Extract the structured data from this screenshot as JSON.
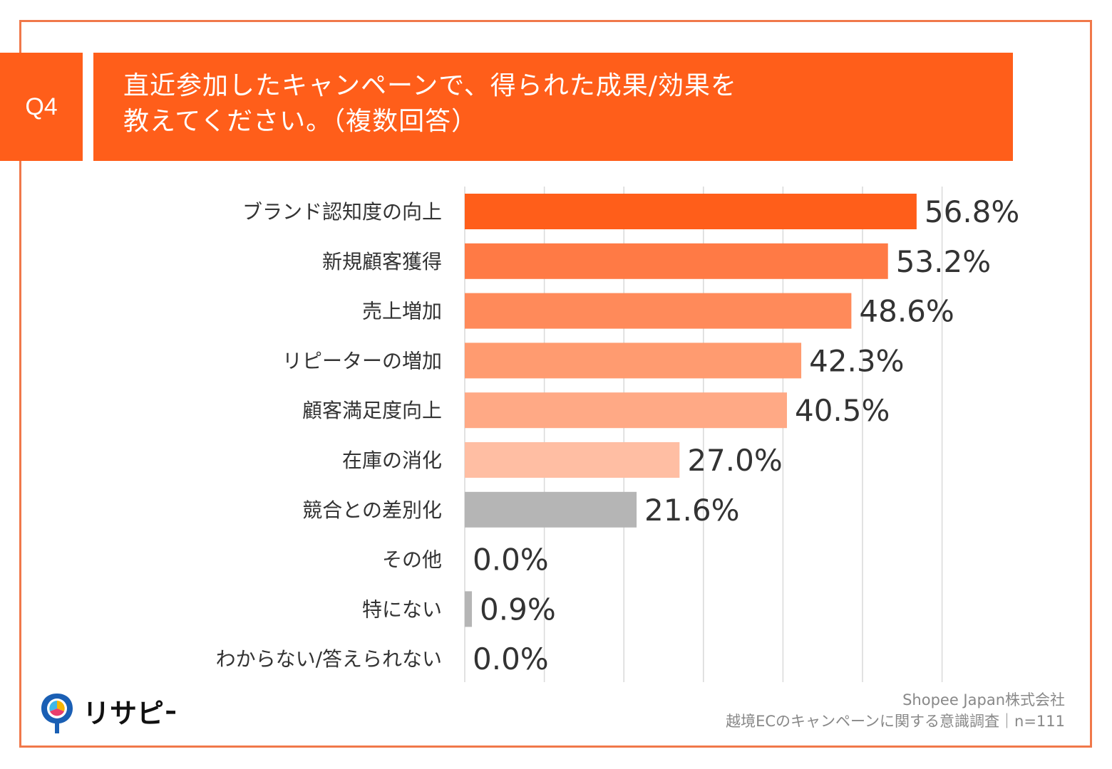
{
  "header": {
    "q_label": "Q4",
    "title_line1": "直近参加したキャンペーンで、得られた成果/効果を",
    "title_line2": "教えてください。（複数回答）"
  },
  "colors": {
    "accent": "#ff5e1a",
    "frame": "#f0784a",
    "grid": "#d9d9d9",
    "gray_bar": "#b5b5b5"
  },
  "chart_data": {
    "type": "bar",
    "orientation": "horizontal",
    "title": "直近参加したキャンペーンで、得られた成果/効果を教えてください。（複数回答）",
    "unit": "%",
    "xlim": [
      0,
      60
    ],
    "categories": [
      "ブランド認知度の向上",
      "新規顧客獲得",
      "売上増加",
      "リピーターの増加",
      "顧客満足度向上",
      "在庫の消化",
      "競合との差別化",
      "その他",
      "特にない",
      "わからない/答えられない"
    ],
    "values": [
      56.8,
      53.2,
      48.6,
      42.3,
      40.5,
      27.0,
      21.6,
      0.0,
      0.9,
      0.0
    ],
    "labels": [
      "56.8%",
      "53.2%",
      "48.6%",
      "42.3%",
      "40.5%",
      "27.0%",
      "21.6%",
      "0.0%",
      "0.9%",
      "0.0%"
    ],
    "bar_colors": [
      "#ff5e1a",
      "#ff7a45",
      "#ff8a5a",
      "#ff9b70",
      "#ffa985",
      "#ffbea3",
      "#b5b5b5",
      "#b5b5b5",
      "#b5b5b5",
      "#b5b5b5"
    ]
  },
  "footer": {
    "logo_text": "リサピー",
    "source_line1": "Shopee Japan株式会社",
    "source_line2": "越境ECのキャンペーンに関する意識調査｜n=111"
  }
}
